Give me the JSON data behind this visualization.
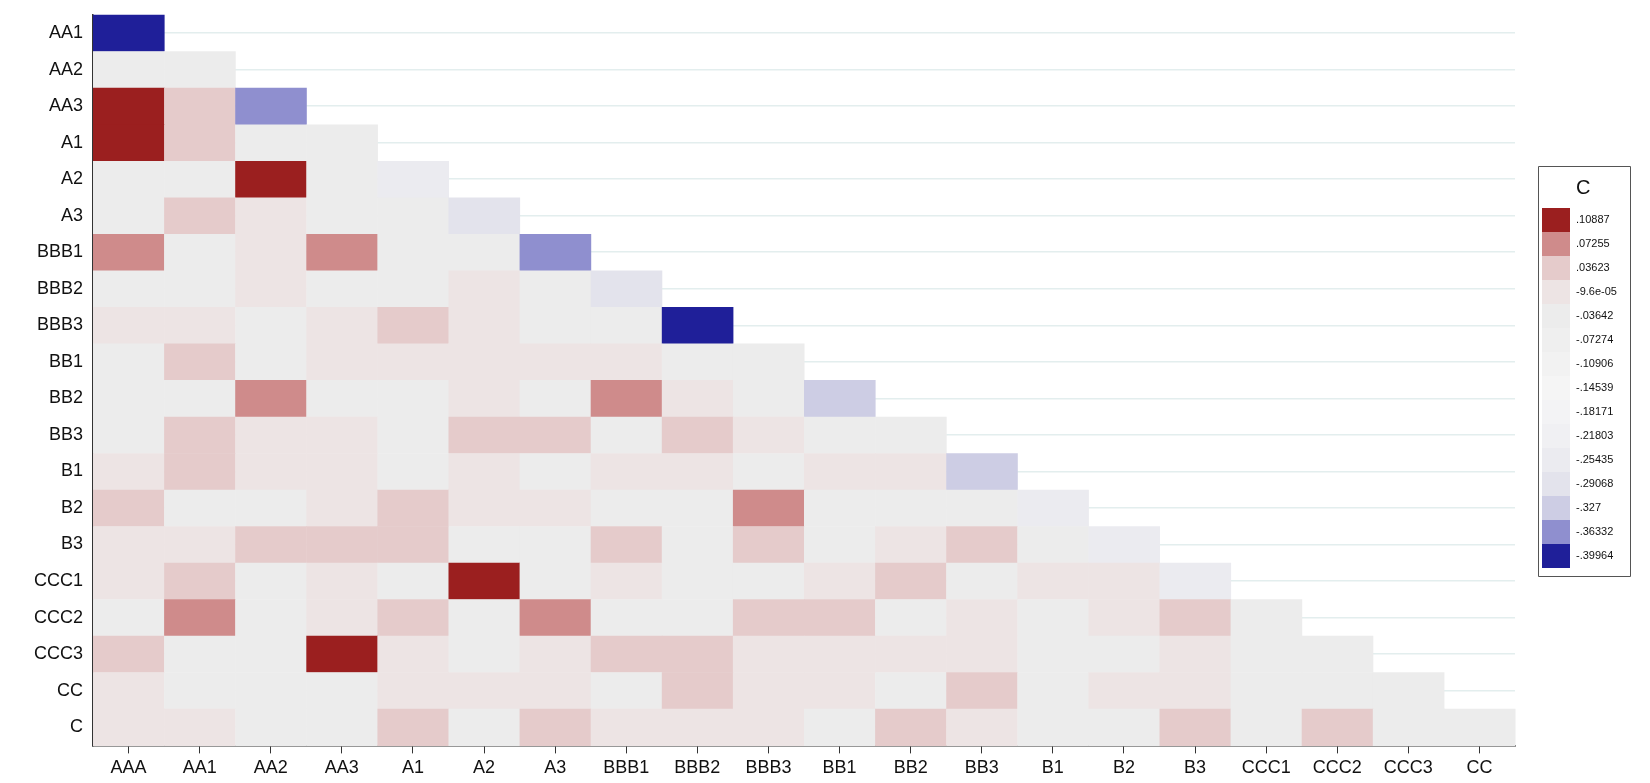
{
  "chart_data": {
    "type": "heatmap",
    "categories": [
      "AAA",
      "AA1",
      "AA2",
      "AA3",
      "A1",
      "A2",
      "A3",
      "BBB1",
      "BBB2",
      "BBB3",
      "BB1",
      "BB2",
      "BB3",
      "B1",
      "B2",
      "B3",
      "CCC1",
      "CCC2",
      "CCC3",
      "CC"
    ],
    "y_categories": [
      "AA1",
      "AA2",
      "AA3",
      "A1",
      "A2",
      "A3",
      "BBB1",
      "BBB2",
      "BBB3",
      "BB1",
      "BB2",
      "BB3",
      "B1",
      "B2",
      "B3",
      "CCC1",
      "CCC2",
      "CCC3",
      "CC",
      "C"
    ],
    "cells": [
      [
        -0.39964,
        null,
        null,
        null,
        null,
        null,
        null,
        null,
        null,
        null,
        null,
        null,
        null,
        null,
        null,
        null,
        null,
        null,
        null,
        null
      ],
      [
        -0.03642,
        -0.03642,
        null,
        null,
        null,
        null,
        null,
        null,
        null,
        null,
        null,
        null,
        null,
        null,
        null,
        null,
        null,
        null,
        null,
        null
      ],
      [
        0.10887,
        0.03623,
        -0.36332,
        null,
        null,
        null,
        null,
        null,
        null,
        null,
        null,
        null,
        null,
        null,
        null,
        null,
        null,
        null,
        null,
        null
      ],
      [
        0.10887,
        0.03623,
        -0.03642,
        -0.03642,
        null,
        null,
        null,
        null,
        null,
        null,
        null,
        null,
        null,
        null,
        null,
        null,
        null,
        null,
        null,
        null
      ],
      [
        -0.03642,
        -0.03642,
        0.10887,
        -0.03642,
        -0.25435,
        null,
        null,
        null,
        null,
        null,
        null,
        null,
        null,
        null,
        null,
        null,
        null,
        null,
        null,
        null
      ],
      [
        -0.03642,
        0.03623,
        -9.6e-05,
        -0.03642,
        -0.03642,
        -0.29068,
        null,
        null,
        null,
        null,
        null,
        null,
        null,
        null,
        null,
        null,
        null,
        null,
        null,
        null
      ],
      [
        0.07255,
        -0.03642,
        -9.6e-05,
        0.07255,
        -0.03642,
        -0.03642,
        -0.36332,
        null,
        null,
        null,
        null,
        null,
        null,
        null,
        null,
        null,
        null,
        null,
        null,
        null
      ],
      [
        -0.03642,
        -0.03642,
        -9.6e-05,
        -0.03642,
        -0.03642,
        -9.6e-05,
        -0.03642,
        -0.29068,
        null,
        null,
        null,
        null,
        null,
        null,
        null,
        null,
        null,
        null,
        null,
        null
      ],
      [
        -9.6e-05,
        -9.6e-05,
        -0.03642,
        -9.6e-05,
        0.03623,
        -9.6e-05,
        -0.03642,
        -0.03642,
        -0.39964,
        null,
        null,
        null,
        null,
        null,
        null,
        null,
        null,
        null,
        null,
        null
      ],
      [
        -0.03642,
        0.03623,
        -0.03642,
        -9.6e-05,
        -9.6e-05,
        -9.6e-05,
        -9.6e-05,
        -9.6e-05,
        -0.03642,
        -0.03642,
        null,
        null,
        null,
        null,
        null,
        null,
        null,
        null,
        null,
        null
      ],
      [
        -0.03642,
        -0.03642,
        0.07255,
        -0.03642,
        -0.03642,
        -9.6e-05,
        -0.03642,
        0.07255,
        -9.6e-05,
        -0.03642,
        -0.327,
        null,
        null,
        null,
        null,
        null,
        null,
        null,
        null,
        null
      ],
      [
        -0.03642,
        0.03623,
        -9.6e-05,
        -9.6e-05,
        -0.03642,
        0.03623,
        0.03623,
        -0.03642,
        0.03623,
        -9.6e-05,
        -0.03642,
        -0.03642,
        null,
        null,
        null,
        null,
        null,
        null,
        null,
        null
      ],
      [
        -9.6e-05,
        0.03623,
        -9.6e-05,
        -9.6e-05,
        -0.03642,
        -9.6e-05,
        -0.03642,
        -9.6e-05,
        -9.6e-05,
        -0.03642,
        -9.6e-05,
        -9.6e-05,
        -0.327,
        null,
        null,
        null,
        null,
        null,
        null,
        null
      ],
      [
        0.03623,
        -0.03642,
        -0.03642,
        -9.6e-05,
        0.03623,
        -9.6e-05,
        -9.6e-05,
        -0.03642,
        -0.03642,
        0.07255,
        -0.03642,
        -0.03642,
        -0.03642,
        -0.25435,
        null,
        null,
        null,
        null,
        null,
        null
      ],
      [
        -9.6e-05,
        -9.6e-05,
        0.03623,
        0.03623,
        0.03623,
        -0.03642,
        -0.03642,
        0.03623,
        -0.03642,
        0.03623,
        -0.03642,
        -9.6e-05,
        0.03623,
        -0.03642,
        -0.25435,
        null,
        null,
        null,
        null,
        null
      ],
      [
        -9.6e-05,
        0.03623,
        -0.03642,
        -9.6e-05,
        -0.03642,
        0.10887,
        -0.03642,
        -9.6e-05,
        -0.03642,
        -0.03642,
        -9.6e-05,
        0.03623,
        -0.03642,
        -9.6e-05,
        -9.6e-05,
        -0.25435,
        null,
        null,
        null,
        null
      ],
      [
        -0.03642,
        0.07255,
        -0.03642,
        -9.6e-05,
        0.03623,
        -0.03642,
        0.07255,
        -0.03642,
        -0.03642,
        0.03623,
        0.03623,
        -0.03642,
        -9.6e-05,
        -0.03642,
        -9.6e-05,
        0.03623,
        -0.03642,
        null,
        null,
        null
      ],
      [
        0.03623,
        -0.03642,
        -0.03642,
        0.10887,
        -9.6e-05,
        -0.03642,
        -9.6e-05,
        0.03623,
        0.03623,
        -9.6e-05,
        -9.6e-05,
        -9.6e-05,
        -9.6e-05,
        -0.03642,
        -0.03642,
        -9.6e-05,
        -0.03642,
        -0.03642,
        null,
        null
      ],
      [
        -9.6e-05,
        -0.03642,
        -0.03642,
        -0.03642,
        -9.6e-05,
        -9.6e-05,
        -9.6e-05,
        -0.03642,
        0.03623,
        -9.6e-05,
        -9.6e-05,
        -0.03642,
        0.03623,
        -0.03642,
        -9.6e-05,
        -9.6e-05,
        -0.03642,
        -0.03642,
        -0.03642,
        null
      ],
      [
        -9.6e-05,
        -9.6e-05,
        -0.03642,
        -0.03642,
        0.03623,
        -0.03642,
        0.03623,
        -9.6e-05,
        -9.6e-05,
        -9.6e-05,
        -0.03642,
        0.03623,
        -9.6e-05,
        -0.03642,
        -0.03642,
        0.03623,
        -0.03642,
        0.03623,
        -0.03642,
        -0.03642
      ]
    ],
    "clabel": "C",
    "clim": [
      -0.4178,
      0.12703
    ],
    "cticks": [
      {
        "value": 0.10887,
        "label": ".10887"
      },
      {
        "value": 0.07255,
        "label": ".07255"
      },
      {
        "value": 0.03623,
        "label": ".03623"
      },
      {
        "value": -9.6e-05,
        "label": "-9.6e-05"
      },
      {
        "value": -0.03642,
        "label": "-.03642"
      },
      {
        "value": -0.07274,
        "label": "-.07274"
      },
      {
        "value": -0.10906,
        "label": "-.10906"
      },
      {
        "value": -0.14539,
        "label": "-.14539"
      },
      {
        "value": -0.18171,
        "label": "-.18171"
      },
      {
        "value": -0.21803,
        "label": "-.21803"
      },
      {
        "value": -0.25435,
        "label": "-.25435"
      },
      {
        "value": -0.29068,
        "label": "-.29068"
      },
      {
        "value": -0.327,
        "label": "-.327"
      },
      {
        "value": -0.36332,
        "label": "-.36332"
      },
      {
        "value": -0.39964,
        "label": "-.39964"
      }
    ],
    "colors": [
      "#9b1f1f",
      "#cf8b8b",
      "#e5cbcb",
      "#ede4e4",
      "#ececec",
      "#efefef",
      "#f2f2f2",
      "#f5f5f5",
      "#f3f3f5",
      "#f0f0f3",
      "#ebebf0",
      "#e3e3ec",
      "#cdcde4",
      "#8f8fcf",
      "#1f1f99"
    ],
    "grid": "y"
  }
}
